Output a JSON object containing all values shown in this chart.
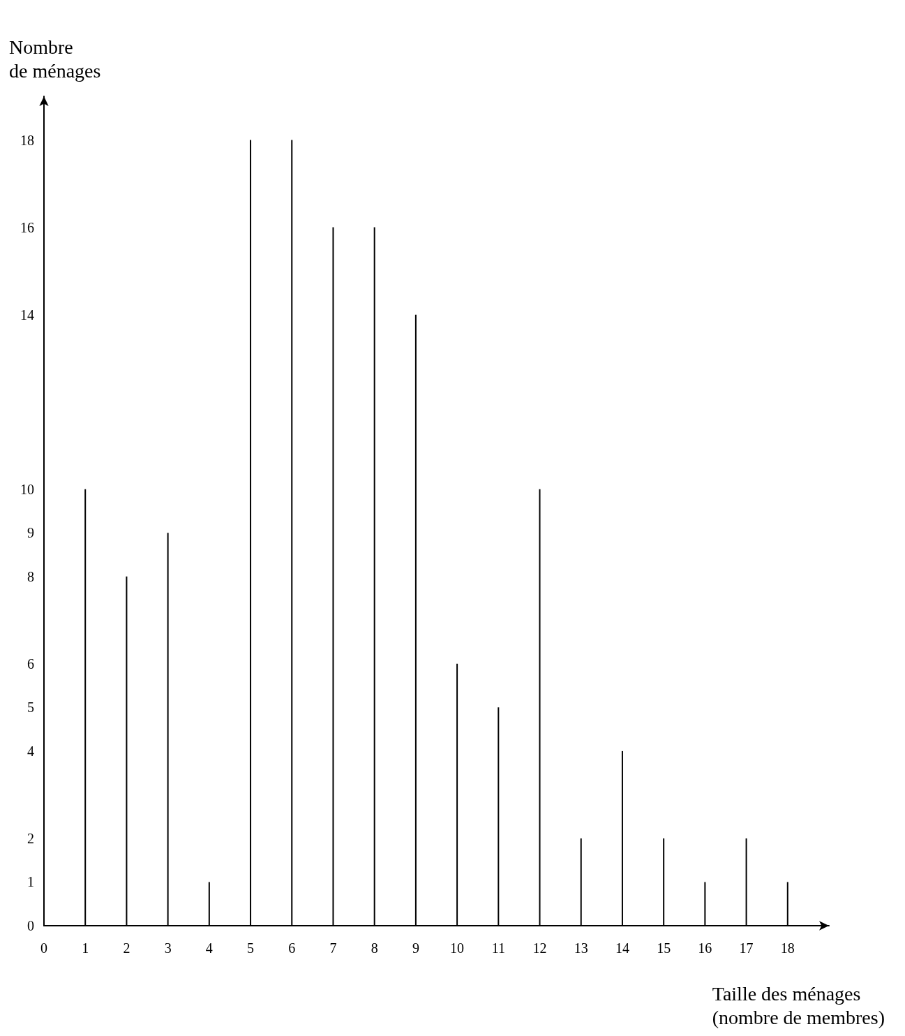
{
  "chart_data": {
    "type": "bar",
    "xlabel": "Taille des ménages\n(nombre de membres)",
    "ylabel": "Nombre\nde ménages",
    "x": [
      1,
      2,
      3,
      4,
      5,
      6,
      7,
      8,
      9,
      10,
      11,
      12,
      13,
      14,
      15,
      16,
      17,
      18
    ],
    "values": [
      10,
      8,
      9,
      1,
      18,
      18,
      16,
      16,
      14,
      6,
      5,
      10,
      2,
      4,
      2,
      1,
      2,
      1
    ],
    "color": "#000000",
    "xlim": [
      0,
      19
    ],
    "xticks": [
      0,
      1,
      2,
      3,
      4,
      5,
      6,
      7,
      8,
      9,
      10,
      11,
      12,
      13,
      14,
      15,
      16,
      17,
      18
    ],
    "ylim": [
      0,
      19
    ],
    "yticks": [
      0,
      1,
      2,
      4,
      5,
      6,
      8,
      9,
      10,
      14,
      16,
      18
    ],
    "grid": false
  }
}
